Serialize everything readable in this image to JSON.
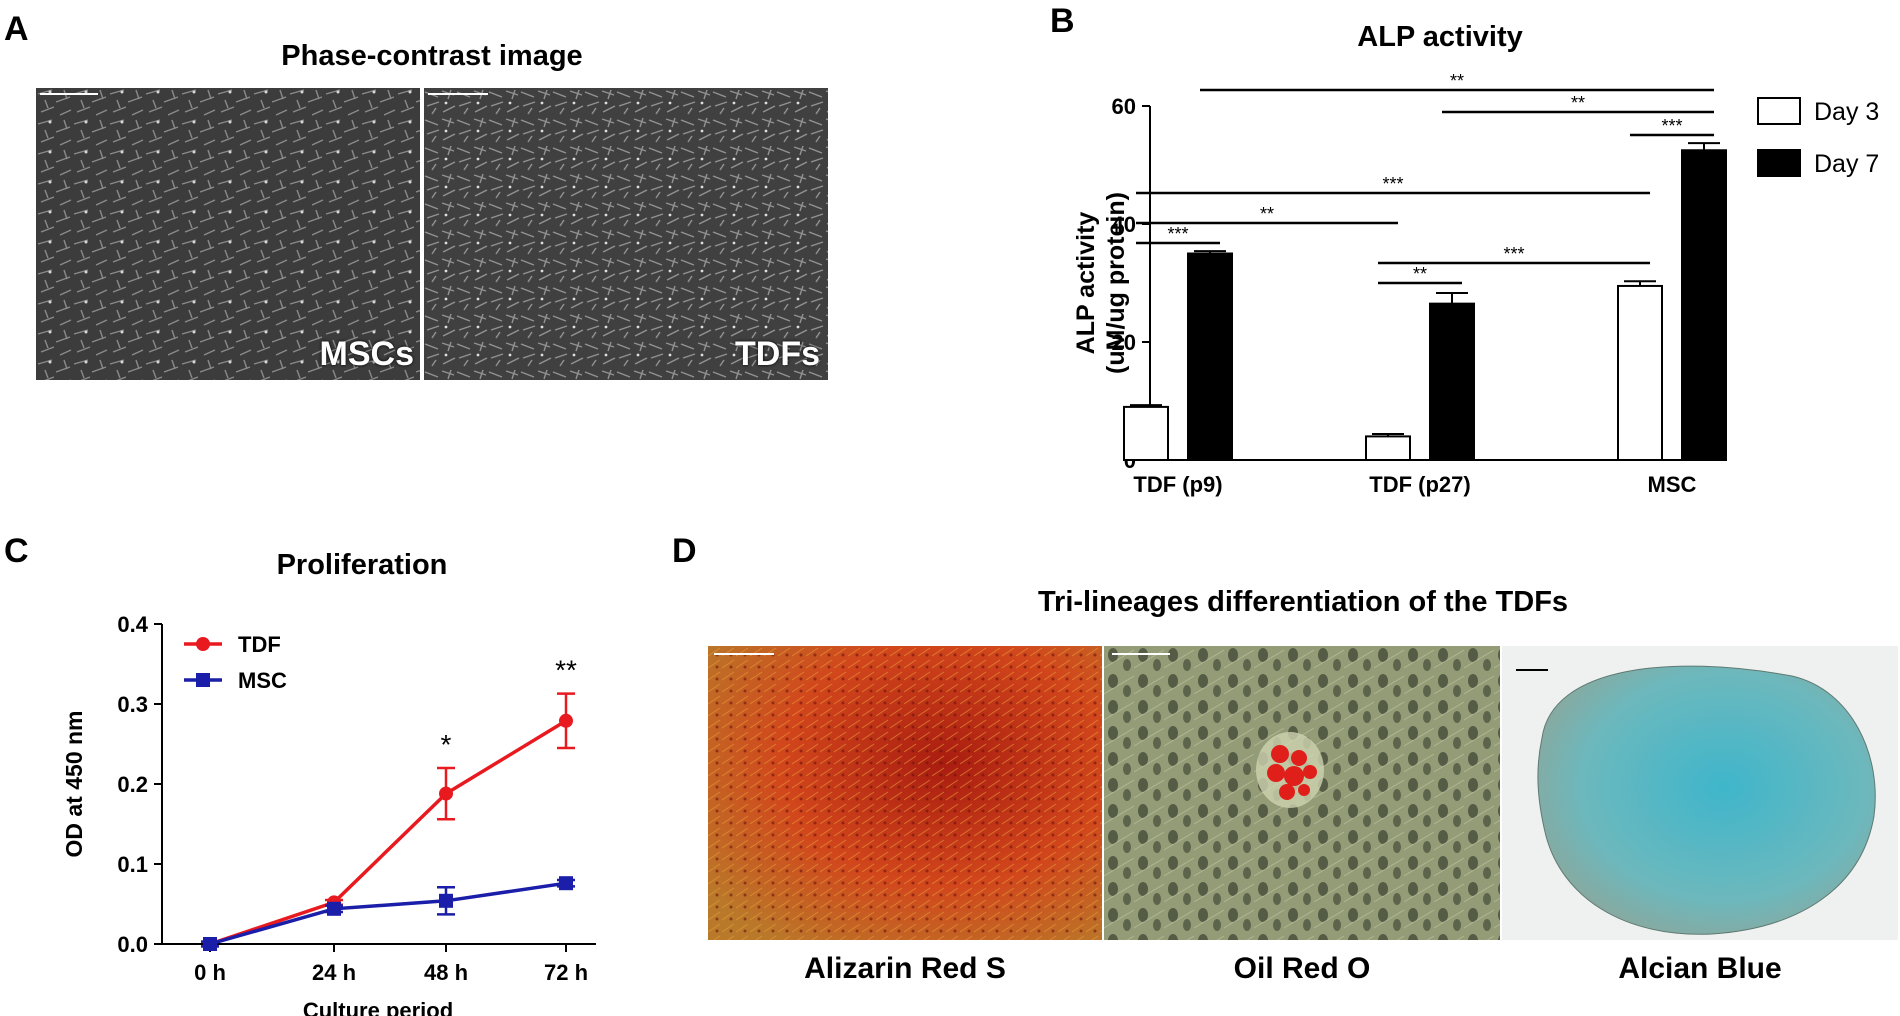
{
  "panels": {
    "a": {
      "letter": "A",
      "title": "Phase-contrast image",
      "images": [
        {
          "label": "MSCs"
        },
        {
          "label": "TDFs"
        }
      ]
    },
    "b": {
      "letter": "B"
    },
    "c": {
      "letter": "C"
    },
    "d": {
      "letter": "D",
      "title": "Tri-lineages differentiation of the TDFs",
      "images": [
        {
          "caption": "Alizarin Red S"
        },
        {
          "caption": "Oil Red O"
        },
        {
          "caption": "Alcian Blue"
        }
      ]
    }
  },
  "colors": {
    "tdf_line": "#e8191f",
    "msc_line": "#1b1ea8",
    "bar_day3": "#ffffff",
    "bar_day7": "#000000",
    "alizarin": "#c8381a",
    "oil_red_bg": "#8f9a72",
    "alcian": "#5fb8c4"
  },
  "chart_data": [
    {
      "type": "bar",
      "title": "ALP activity",
      "ylabel": "ALP activity (uM/ug protein)",
      "ylabel_lines": [
        "ALP activity",
        "(uM/ug protein)"
      ],
      "categories": [
        "TDF (p9)",
        "TDF (p27)",
        "MSC"
      ],
      "ylim": [
        0,
        60
      ],
      "yticks": [
        0,
        20,
        40,
        60
      ],
      "legend_position": "right",
      "series": [
        {
          "name": "Day 3",
          "values": [
            9,
            4,
            29.5
          ],
          "errors": [
            0.3,
            0.4,
            0.8
          ]
        },
        {
          "name": "Day 7",
          "values": [
            35,
            26.5,
            52.5
          ],
          "errors": [
            0.4,
            1.8,
            1.2
          ]
        }
      ],
      "significance": [
        {
          "label": "**",
          "from": "TDF (p9) Day 7",
          "to": "MSC Day 7"
        },
        {
          "label": "**",
          "from": "TDF (p27) Day 7",
          "to": "MSC Day 7"
        },
        {
          "label": "***",
          "from": "MSC Day 3",
          "to": "MSC Day 7"
        },
        {
          "label": "***",
          "from": "TDF (p9) Day 3",
          "to": "MSC Day 3"
        },
        {
          "label": "**",
          "from": "TDF (p9) Day 3",
          "to": "TDF (p27) Day 3"
        },
        {
          "label": "***",
          "from": "TDF (p9) Day 3",
          "to": "TDF (p9) Day 7"
        },
        {
          "label": "***",
          "from": "TDF (p27) Day 3",
          "to": "MSC Day 3"
        },
        {
          "label": "**",
          "from": "TDF (p27) Day 3",
          "to": "TDF (p27) Day 7"
        }
      ],
      "grid": false
    },
    {
      "type": "line",
      "title": "Proliferation",
      "xlabel": "Culture period",
      "ylabel": "OD at 450 nm",
      "categories": [
        "0 h",
        "24 h",
        "48 h",
        "72 h"
      ],
      "ylim": [
        0,
        0.4
      ],
      "yticks": [
        "0.0",
        "0.1",
        "0.2",
        "0.3",
        "0.4"
      ],
      "legend_position": "top-left",
      "series": [
        {
          "name": "TDF",
          "values": [
            0.0,
            0.052,
            0.188,
            0.279
          ],
          "errors": [
            0.003,
            0.003,
            0.032,
            0.034
          ]
        },
        {
          "name": "MSC",
          "values": [
            0.0,
            0.044,
            0.054,
            0.076
          ],
          "errors": [
            0.003,
            0.004,
            0.017,
            0.004
          ]
        }
      ],
      "annotations": [
        {
          "label": "*",
          "category": "48 h"
        },
        {
          "label": "**",
          "category": "72 h"
        }
      ],
      "grid": false
    }
  ]
}
